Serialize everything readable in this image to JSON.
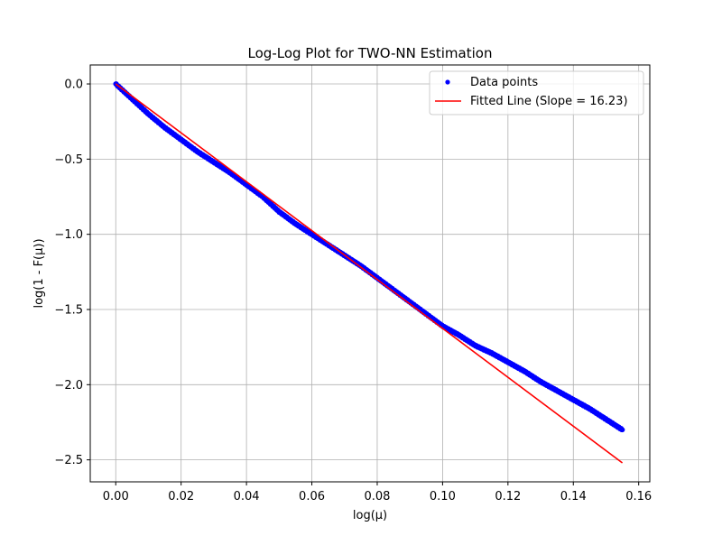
{
  "chart_data": {
    "type": "scatter",
    "title": "Log-Log Plot for TWO-NN Estimation",
    "xlabel": "log(μ)",
    "ylabel": "log(1 - F(μ))",
    "xlim": [
      -0.0078,
      0.1634
    ],
    "ylim": [
      -2.6462,
      0.1262
    ],
    "grid": true,
    "legend_position": "top-right",
    "xticks": [
      0.0,
      0.02,
      0.04,
      0.06,
      0.08,
      0.1,
      0.12,
      0.14,
      0.16
    ],
    "xtick_labels": [
      "0.00",
      "0.02",
      "0.04",
      "0.06",
      "0.08",
      "0.10",
      "0.12",
      "0.14",
      "0.16"
    ],
    "yticks": [
      0.0,
      -0.5,
      -1.0,
      -1.5,
      -2.0,
      -2.5
    ],
    "ytick_labels": [
      "0.0",
      "−0.5",
      "−1.0",
      "−1.5",
      "−2.0",
      "−2.5"
    ],
    "series": [
      {
        "name": "Data points",
        "kind": "scatter",
        "color": "#0000ff",
        "x": [
          0.0,
          0.005,
          0.01,
          0.015,
          0.02,
          0.025,
          0.03,
          0.035,
          0.04,
          0.045,
          0.05,
          0.055,
          0.06,
          0.065,
          0.07,
          0.075,
          0.08,
          0.085,
          0.09,
          0.095,
          0.1,
          0.105,
          0.11,
          0.115,
          0.12,
          0.125,
          0.13,
          0.135,
          0.14,
          0.145,
          0.15,
          0.155
        ],
        "y": [
          0.0,
          -0.1,
          -0.2,
          -0.29,
          -0.37,
          -0.45,
          -0.52,
          -0.59,
          -0.67,
          -0.75,
          -0.85,
          -0.93,
          -1.0,
          -1.07,
          -1.14,
          -1.21,
          -1.29,
          -1.37,
          -1.45,
          -1.53,
          -1.61,
          -1.67,
          -1.74,
          -1.79,
          -1.85,
          -1.91,
          -1.98,
          -2.04,
          -2.1,
          -2.16,
          -2.23,
          -2.3
        ]
      },
      {
        "name": "Fitted Line (Slope = 16.23)",
        "kind": "line",
        "color": "#ff0000",
        "x": [
          0.0,
          0.155
        ],
        "y": [
          0.0,
          -2.52
        ]
      }
    ]
  }
}
